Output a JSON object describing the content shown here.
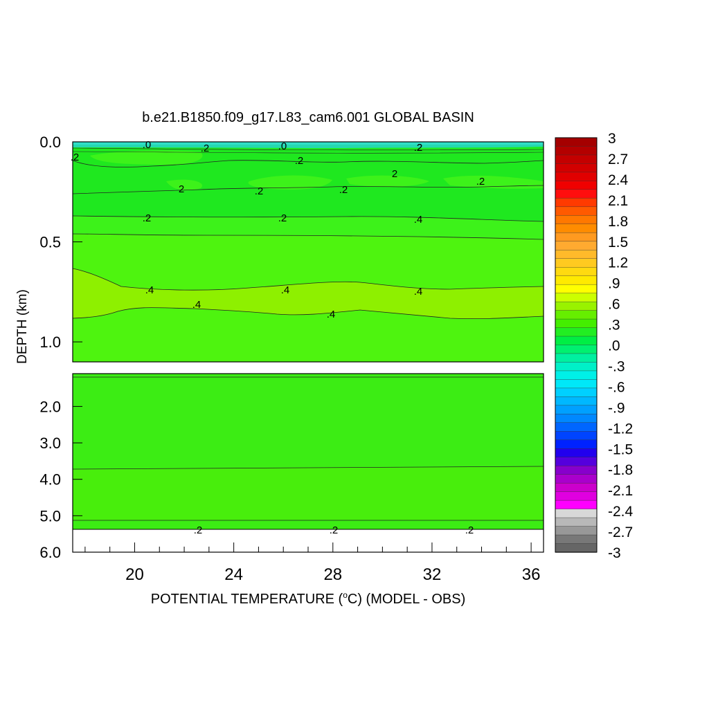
{
  "chart_data": {
    "type": "heatmap",
    "title": "b.e21.B1850.f09_g17.L83_cam6.001 GLOBAL BASIN",
    "xlabel": "POTENTIAL TEMPERATURE (",
    "xlabel_degree": "o",
    "xlabel_rest": "C) (MODEL - OBS)",
    "ylabel": "DEPTH (km)",
    "xlim": [
      17.5,
      36.5
    ],
    "x_ticks": [
      "20",
      "24",
      "28",
      "32",
      "36"
    ],
    "x_tick_values": [
      20,
      24,
      28,
      32,
      36
    ],
    "upper_panel": {
      "ylim": [
        0.0,
        1.1
      ],
      "y_ticks": [
        "0.0",
        "0.5",
        "1.0"
      ],
      "y_tick_values": [
        0.0,
        0.5,
        1.0
      ]
    },
    "lower_panel": {
      "ylim": [
        1.1,
        6.0
      ],
      "y_ticks": [
        "2.0",
        "3.0",
        "4.0",
        "5.0",
        "6.0"
      ],
      "y_tick_values": [
        2.0,
        3.0,
        4.0,
        5.0,
        6.0
      ]
    },
    "colorbar": {
      "range": [
        -3,
        3
      ],
      "labels": [
        "3",
        "2.7",
        "2.4",
        "2.1",
        "1.8",
        "1.5",
        "1.2",
        ".9",
        ".6",
        ".3",
        ".0",
        "-.3",
        "-.6",
        "-.9",
        "-1.2",
        "-1.5",
        "-1.8",
        "-2.1",
        "-2.4",
        "-2.7",
        "-3"
      ],
      "colors": [
        "#a50000",
        "#b40000",
        "#c40000",
        "#d20000",
        "#e10000",
        "#f00000",
        "#ff0e0e",
        "#ff3a00",
        "#ff5a00",
        "#ff7800",
        "#ff8c00",
        "#ff9a20",
        "#ffaa30",
        "#ffba2a",
        "#ffca20",
        "#ffda10",
        "#ffea00",
        "#ffff00",
        "#ccff00",
        "#99f200",
        "#66ee00",
        "#44ee00",
        "#22ee22",
        "#00ee44",
        "#00f070",
        "#00f0a0",
        "#00f0c8",
        "#00f0e8",
        "#00e8f8",
        "#00d0ff",
        "#00b8ff",
        "#00a0ff",
        "#0088ff",
        "#0066ff",
        "#0044ff",
        "#0022ff",
        "#2200ee",
        "#5500dd",
        "#8800cc",
        "#aa00cc",
        "#cc00cc",
        "#e000e0",
        "#ff00ff",
        "#d8d8d8",
        "#b8b8b8",
        "#989898",
        "#787878",
        "#666666"
      ]
    },
    "upper_contour_labels": [
      ".0",
      ".2",
      ".0",
      ".2",
      ".2",
      ".2",
      "2",
      ".2",
      ".2",
      "2",
      ".2",
      ".2",
      ".2",
      ".2",
      ".4",
      ".4",
      ".4",
      ".4",
      ".4",
      ".4"
    ],
    "lower_contour_labels": [
      ".2",
      ".2",
      ".2"
    ],
    "colors": {
      "upper_bright": "#1fe81f",
      "upper_mid": "#3df21a",
      "upper_main": "#4ef40f",
      "upper_lime": "#8ef000",
      "lower_main": "#3ced14",
      "lower_band": "#48ee0c",
      "surface_cyan": "#30e0c8"
    }
  }
}
